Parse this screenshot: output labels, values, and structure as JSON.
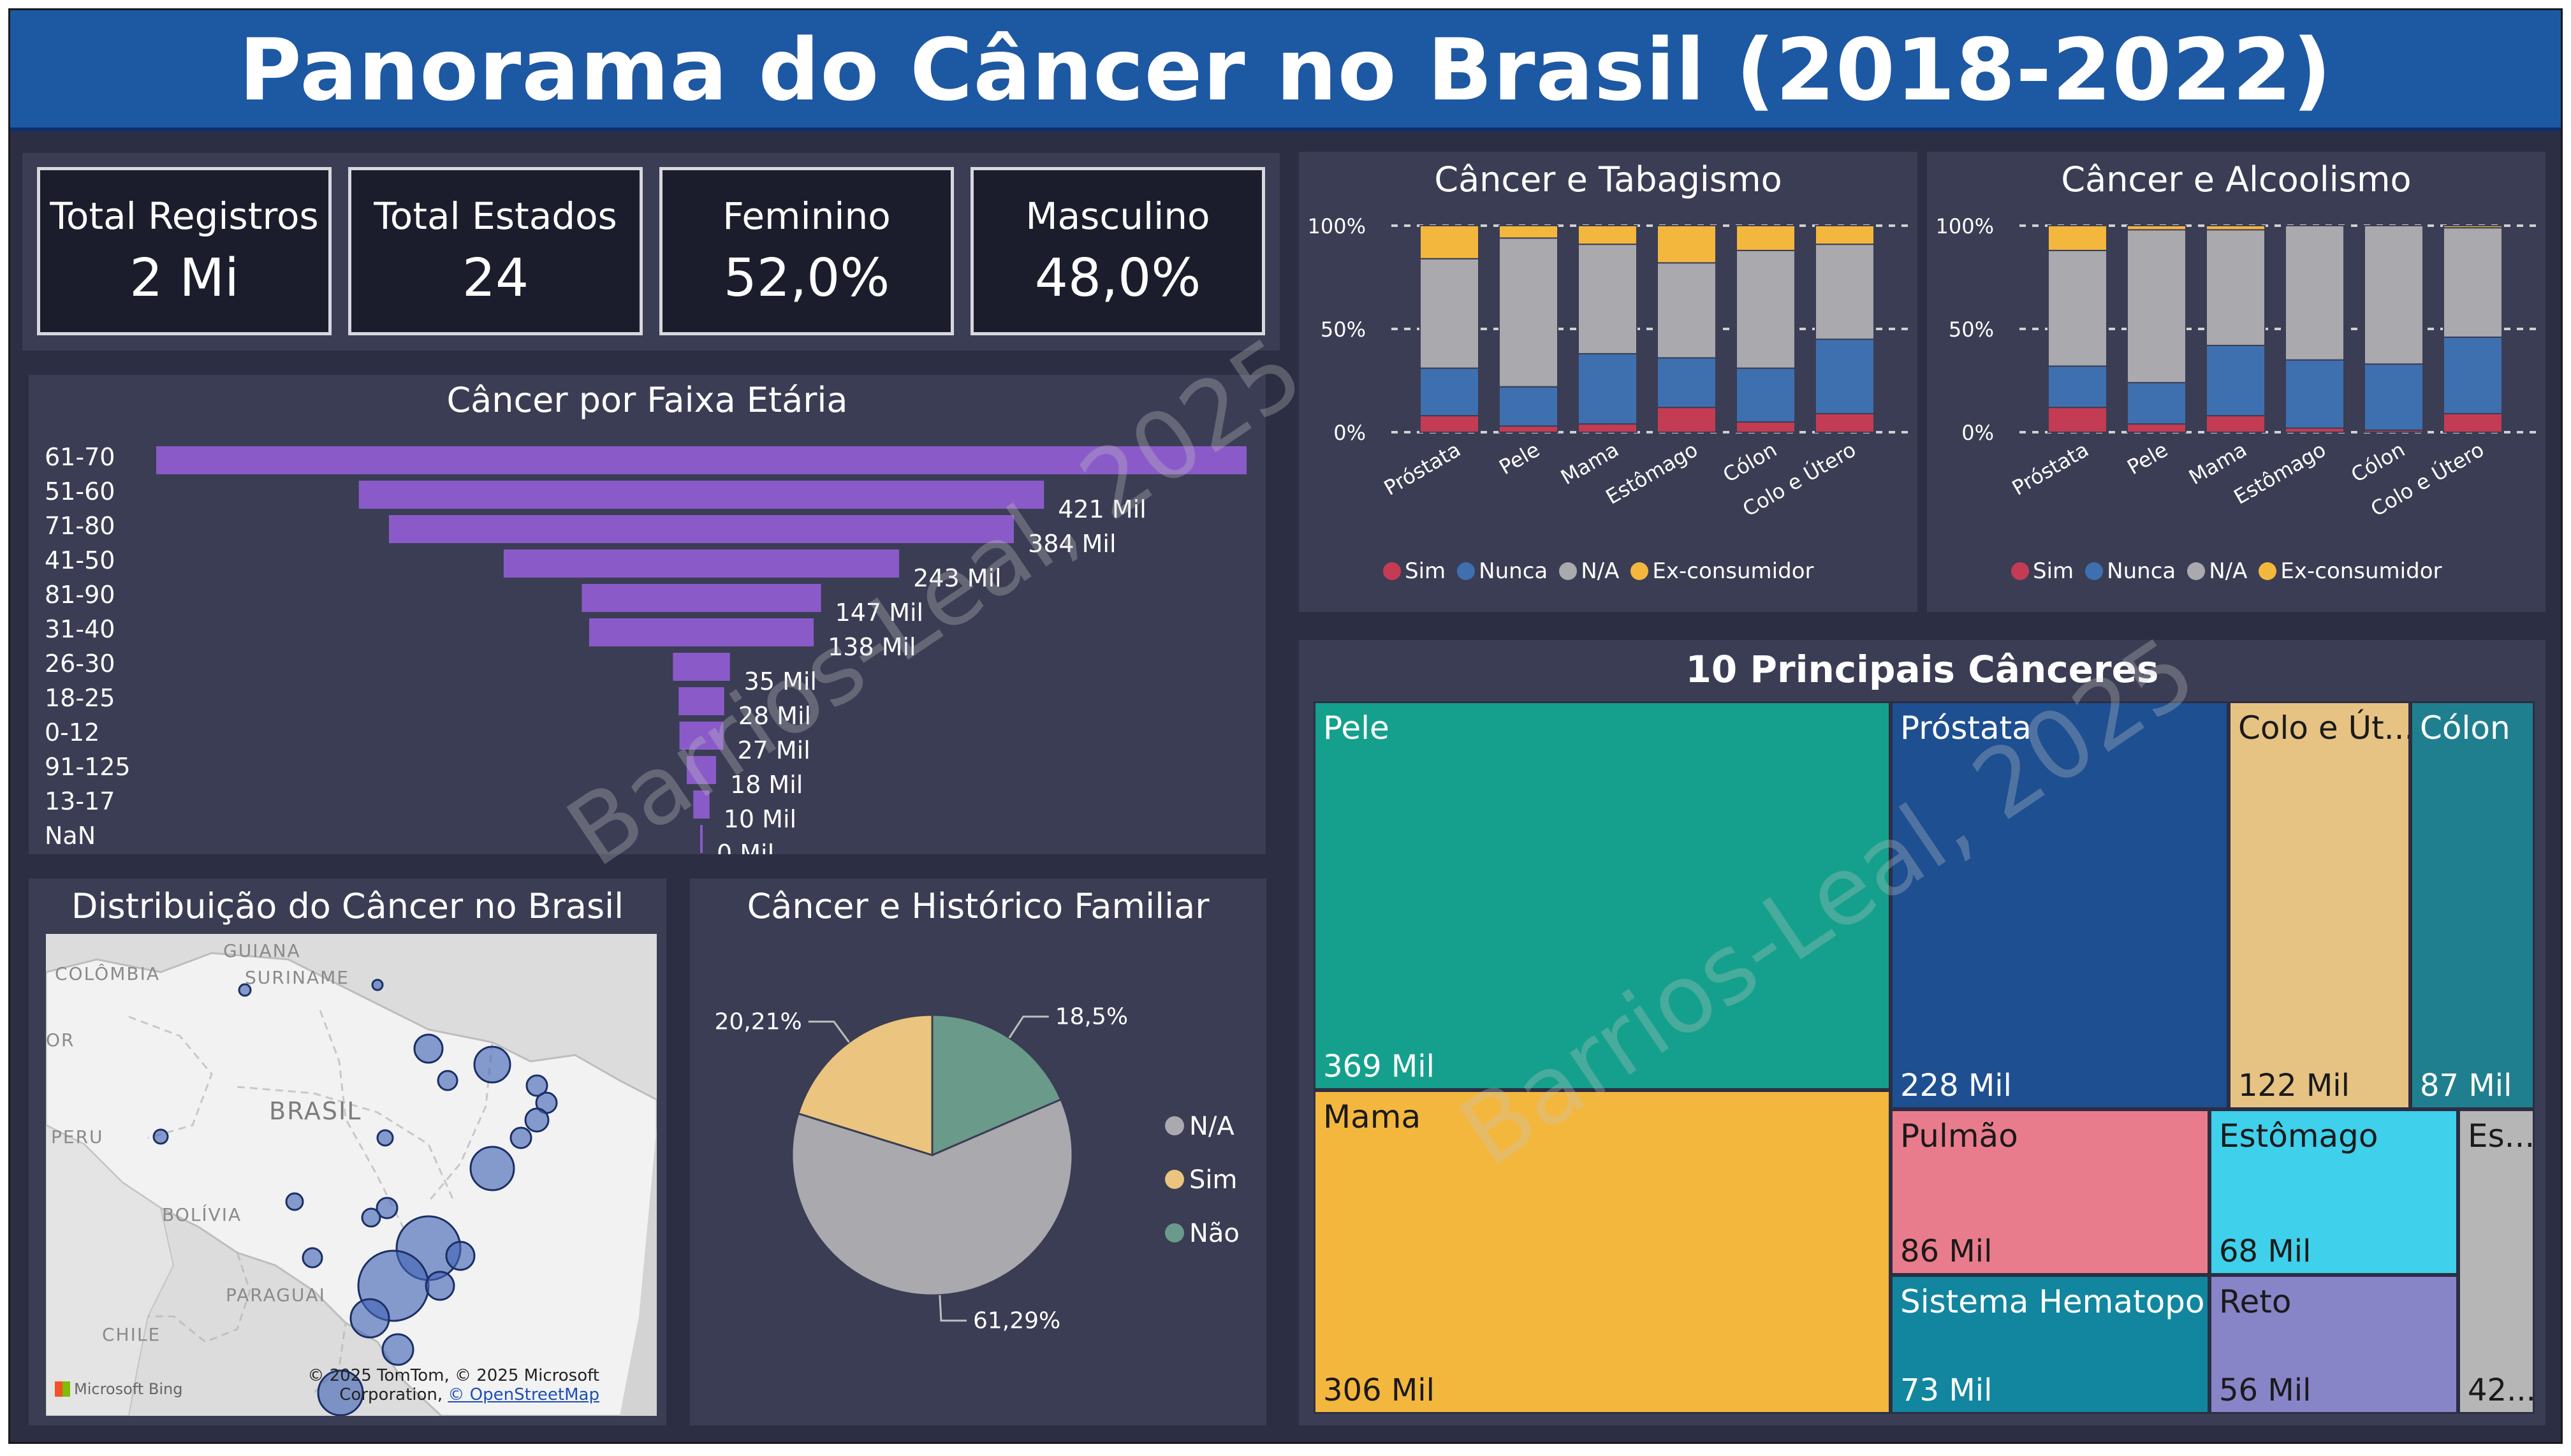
{
  "title": "Panorama do Câncer no Brasil (2018-2022)",
  "watermark": "Barrios-Leal, 2025",
  "kpis": [
    {
      "label": "Total Registros",
      "value": "2 Mi"
    },
    {
      "label": "Total Estados",
      "value": "24"
    },
    {
      "label": "Feminino",
      "value": "52,0%"
    },
    {
      "label": "Masculino",
      "value": "48,0%"
    }
  ],
  "colors": {
    "sim": "#c43c53",
    "nunca": "#3e70b0",
    "na": "#a9a9ae",
    "ex": "#f4b73e",
    "bar": "#8a5bc8",
    "header": "#1d58a3",
    "panel": "#3b3d54",
    "background": "#2c2e43"
  },
  "legend_smoking": [
    "Sim",
    "Nunca",
    "N/A",
    "Ex-consumidor"
  ],
  "map": {
    "title": "Distribuição do Câncer no Brasil",
    "labels": [
      "GUIANA",
      "SURINAME",
      "COLÔMBIA",
      "OR",
      "BRASIL",
      "PERU",
      "BOLÍVIA",
      "PARAGUAI",
      "CHILE"
    ],
    "attribution_line1": "© 2025 TomTom, © 2025 Microsoft",
    "attribution_line2": "Corporation,",
    "attribution_link": "© OpenStreetMap",
    "provider": "Microsoft Bing"
  },
  "chart_data": [
    {
      "type": "bar",
      "orientation": "horizontal",
      "title": "Câncer por Faixa Etária",
      "categories": [
        "61-70",
        "51-60",
        "71-80",
        "41-50",
        "81-90",
        "31-40",
        "26-30",
        "18-25",
        "0-12",
        "91-125",
        "13-17",
        "NaN"
      ],
      "values": [
        670,
        421,
        384,
        243,
        147,
        138,
        35,
        28,
        27,
        18,
        10,
        0
      ],
      "value_labels": [
        "",
        "421 Mil",
        "384 Mil",
        "243 Mil",
        "147 Mil",
        "138 Mil",
        "35 Mil",
        "28 Mil",
        "27 Mil",
        "18 Mil",
        "10 Mil",
        "0 Mil"
      ],
      "unit": "Mil"
    },
    {
      "type": "bar",
      "stacked": true,
      "percent": true,
      "title": "Câncer e Tabagismo",
      "categories": [
        "Próstata",
        "Pele",
        "Mama",
        "Estômago",
        "Cólon",
        "Colo e Útero"
      ],
      "yticks": [
        "100%",
        "50%",
        "0%"
      ],
      "legend": "bottom",
      "series": [
        {
          "name": "Sim",
          "values": [
            8,
            3,
            4,
            12,
            5,
            9
          ]
        },
        {
          "name": "Nunca",
          "values": [
            23,
            19,
            34,
            24,
            26,
            36
          ]
        },
        {
          "name": "N/A",
          "values": [
            53,
            72,
            53,
            46,
            57,
            46
          ]
        },
        {
          "name": "Ex-consumidor",
          "values": [
            16,
            6,
            9,
            18,
            12,
            9
          ]
        }
      ]
    },
    {
      "type": "bar",
      "stacked": true,
      "percent": true,
      "title": "Câncer e Alcoolismo",
      "categories": [
        "Próstata",
        "Pele",
        "Mama",
        "Estômago",
        "Cólon",
        "Colo e Útero"
      ],
      "yticks": [
        "100%",
        "50%",
        "0%"
      ],
      "legend": "bottom",
      "series": [
        {
          "name": "Sim",
          "values": [
            12,
            4,
            8,
            2,
            1,
            9
          ]
        },
        {
          "name": "Nunca",
          "values": [
            20,
            20,
            34,
            33,
            32,
            37
          ]
        },
        {
          "name": "N/A",
          "values": [
            56,
            74,
            56,
            65,
            67,
            53
          ]
        },
        {
          "name": "Ex-consumidor",
          "values": [
            12,
            2,
            2,
            0,
            0,
            1
          ]
        }
      ]
    },
    {
      "type": "pie",
      "title": "Câncer e Histórico Familiar",
      "legend": "right",
      "slices": [
        {
          "name": "N/A",
          "value": 61.29,
          "label": "61,29%",
          "color": "#a9a9ae"
        },
        {
          "name": "Sim",
          "value": 20.21,
          "label": "20,21%",
          "color": "#ebc47f"
        },
        {
          "name": "Não",
          "value": 18.5,
          "label": "18,5%",
          "color": "#6a9a8a"
        }
      ]
    },
    {
      "type": "treemap",
      "title": "10 Principais Cânceres",
      "items": [
        {
          "name": "Pele",
          "value": "369 Mil",
          "color": "#14a08c"
        },
        {
          "name": "Mama",
          "value": "306 Mil",
          "color": "#f4b73e"
        },
        {
          "name": "Próstata",
          "value": "228 Mil",
          "color": "#1d4f91"
        },
        {
          "name": "Colo e Út...",
          "value": "122 Mil",
          "color": "#e6c382"
        },
        {
          "name": "Cólon",
          "value": "87 Mil",
          "color": "#1f7f8f"
        },
        {
          "name": "Pulmão",
          "value": "86 Mil",
          "color": "#e97c8c"
        },
        {
          "name": "Estômago",
          "value": "68 Mil",
          "color": "#3fd0eb"
        },
        {
          "name": "Es...",
          "value": "42...",
          "color": "#b6b6b6"
        },
        {
          "name": "Sistema Hematopo...",
          "value": "73 Mil",
          "color": "#12869e"
        },
        {
          "name": "Reto",
          "value": "56 Mil",
          "color": "#8884c8"
        }
      ]
    }
  ]
}
